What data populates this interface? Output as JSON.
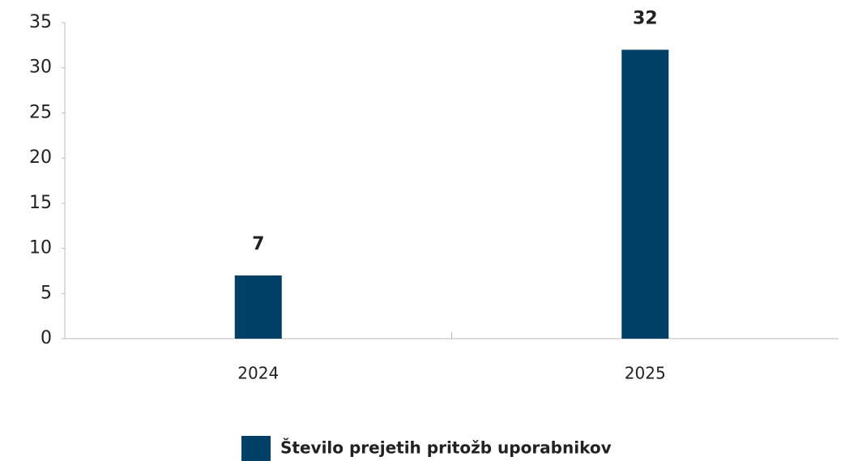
{
  "chart_data": {
    "type": "bar",
    "categories": [
      "2024",
      "2025"
    ],
    "series": [
      {
        "name": "Število prejetih pritožb uporabnikov",
        "color": "#003f66",
        "values": [
          7,
          32
        ]
      }
    ],
    "ylim": [
      0,
      35
    ],
    "yticks": [
      0,
      5,
      10,
      15,
      20,
      25,
      30,
      35
    ],
    "legend": "bottom"
  }
}
